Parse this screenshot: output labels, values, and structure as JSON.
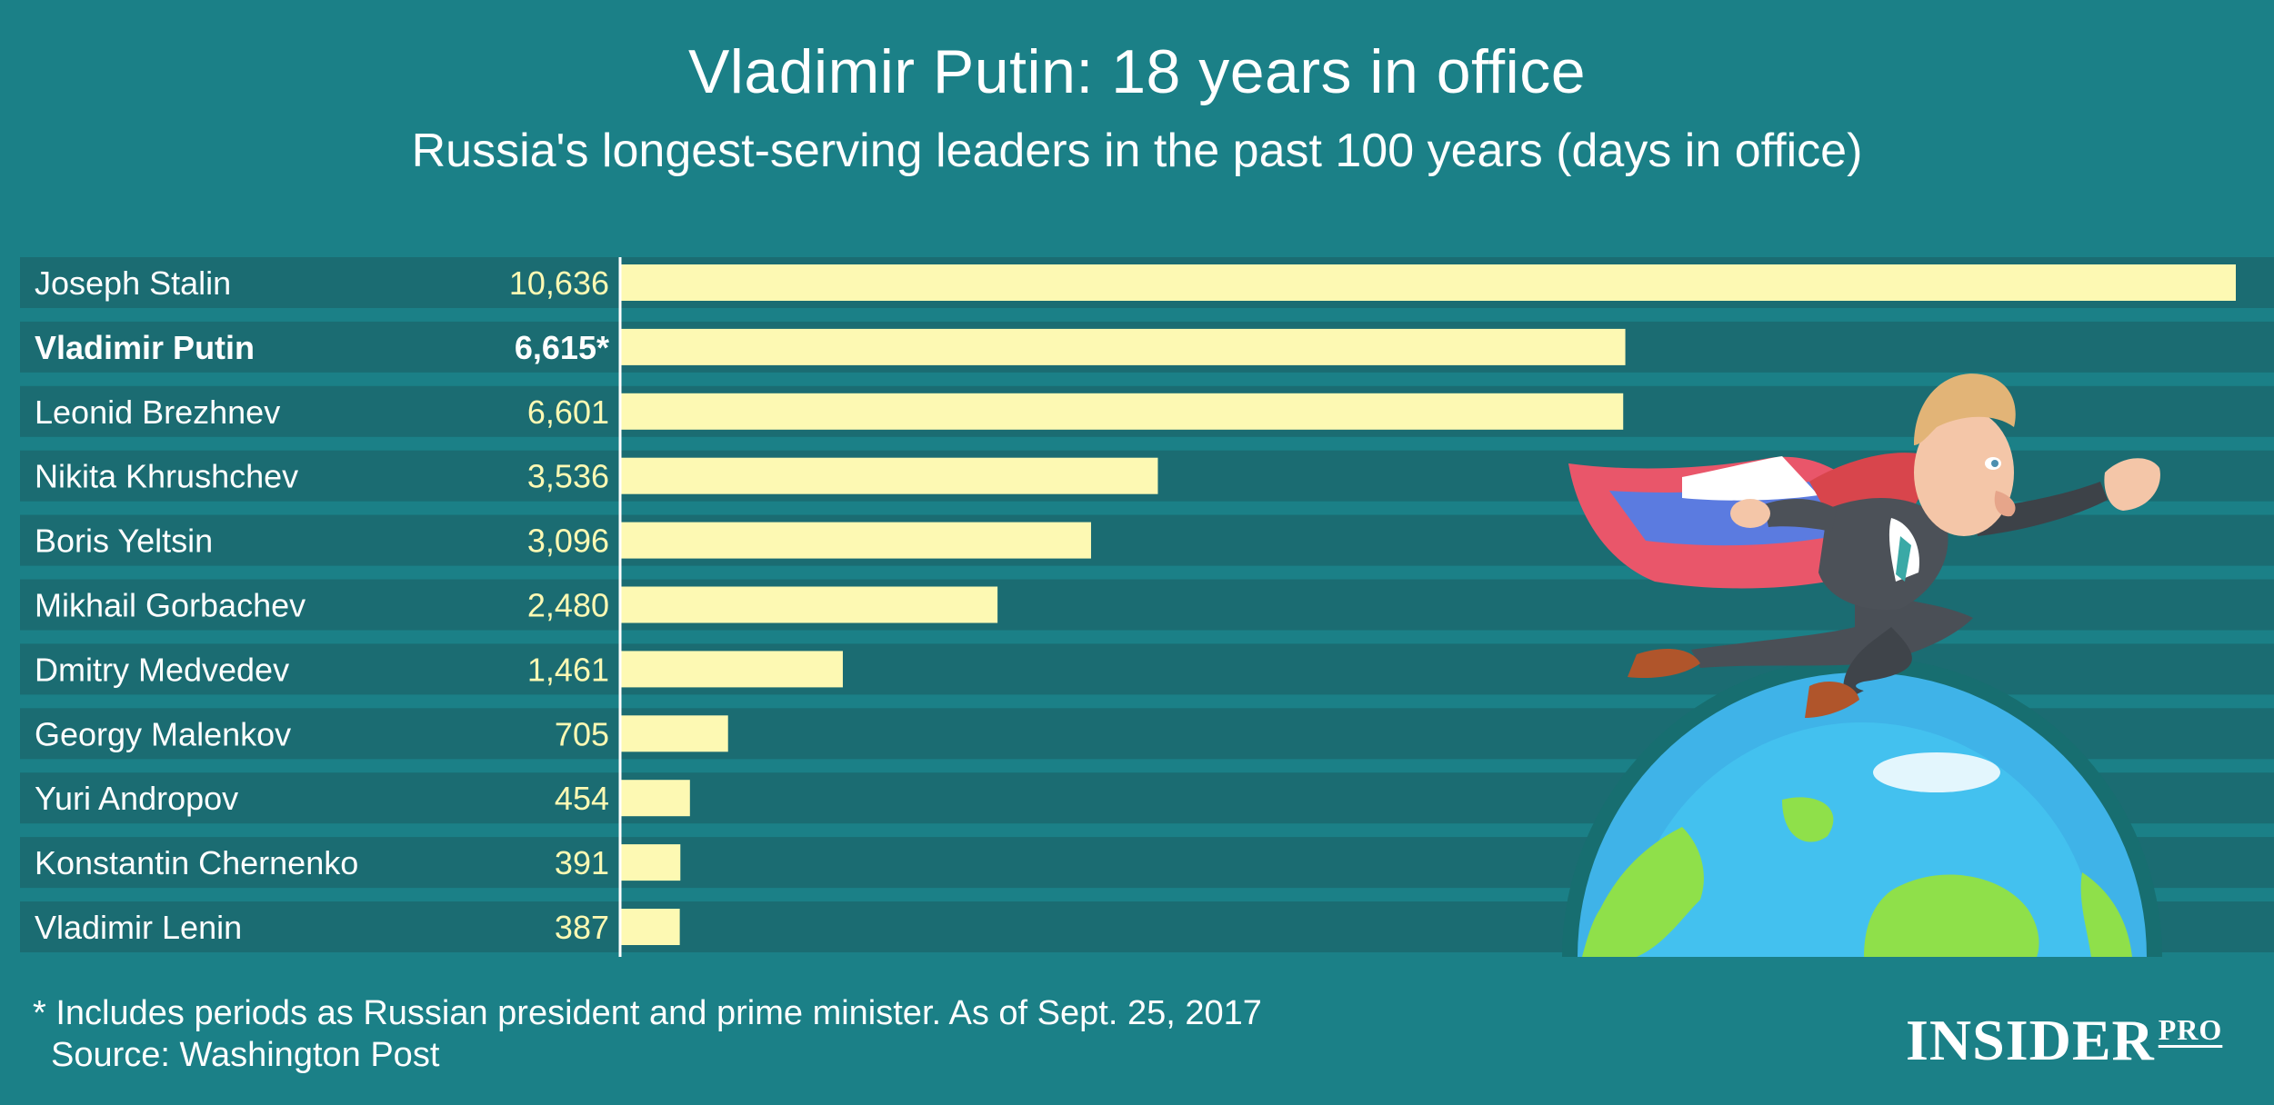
{
  "chart_data": {
    "type": "bar",
    "orientation": "horizontal",
    "title": "Vladimir Putin: 18 years in office",
    "subtitle": "Russia's longest-serving leaders in the past 100 years (days in office)",
    "categories": [
      "Joseph Stalin",
      "Vladimir Putin",
      "Leonid Brezhnev",
      "Nikita Khrushchev",
      "Boris Yeltsin",
      "Mikhail Gorbachev",
      "Dmitry Medvedev",
      "Georgy Malenkov",
      "Yuri Andropov",
      "Konstantin Chernenko",
      "Vladimir Lenin"
    ],
    "values": [
      10636,
      6615,
      6601,
      3536,
      3096,
      2480,
      1461,
      705,
      454,
      391,
      387
    ],
    "data_labels": [
      "10,636",
      "6,615*",
      "6,601",
      "3,536",
      "3,096",
      "2,480",
      "1,461",
      "705",
      "454",
      "391",
      "387"
    ],
    "highlight_index": 1,
    "xlim": [
      0,
      10636
    ],
    "grid": false,
    "bar_color": "#fdf9b3",
    "row_colors": [
      "#1b6c72",
      "#1d7880"
    ]
  },
  "footnote": "* Includes periods as Russian president and prime minister. As of Sept. 25, 2017",
  "source": "Source: Washington Post",
  "logo": {
    "main": "INSIDER",
    "suffix": "PRO"
  },
  "colors": {
    "background": "#1b8087",
    "text": "#ffffff",
    "bar": "#fdf9b3"
  }
}
